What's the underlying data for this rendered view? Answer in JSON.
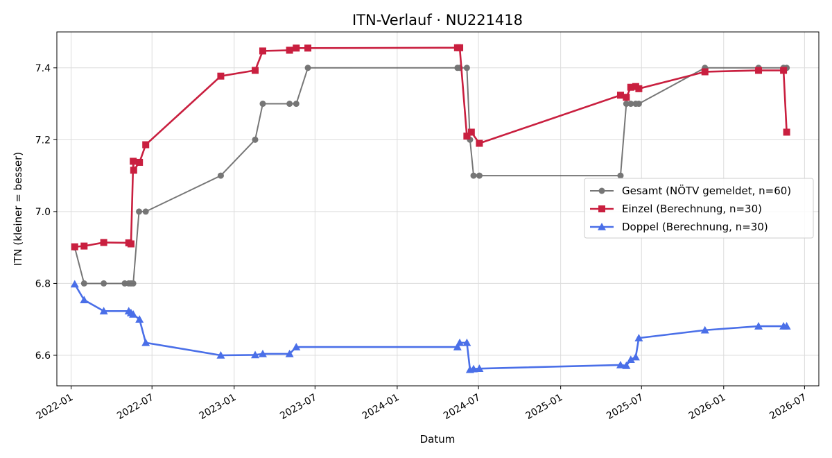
{
  "chart_data": {
    "type": "line",
    "title": "ITN-Verlauf · NU221418",
    "xlabel": "Datum",
    "ylabel": "ITN  (kleiner = besser)",
    "x_type": "date",
    "xlim": [
      "2021-11-30",
      "2026-08-02"
    ],
    "ylim": [
      6.515,
      7.5
    ],
    "x_ticks": [
      "2022-01-01",
      "2022-07-01",
      "2023-01-01",
      "2023-07-01",
      "2024-01-01",
      "2024-07-01",
      "2025-01-01",
      "2025-07-01",
      "2026-01-01",
      "2026-07-01"
    ],
    "x_tick_labels": [
      "2022-01",
      "2022-07",
      "2023-01",
      "2023-07",
      "2024-01",
      "2024-07",
      "2025-01",
      "2025-07",
      "2026-01",
      "2026-07"
    ],
    "y_ticks": [
      6.6,
      6.8,
      7.0,
      7.2,
      7.4
    ],
    "y_tick_labels": [
      "6.6",
      "6.8",
      "7.0",
      "7.2",
      "7.4"
    ],
    "grid": true,
    "legend_position": "center-right",
    "series": [
      {
        "name": "Gesamt (NÖTV gemeldet, n=60)",
        "color": "#555555",
        "marker": "circle",
        "points": [
          [
            "2022-01-09",
            6.9
          ],
          [
            "2022-01-30",
            6.8
          ],
          [
            "2022-03-15",
            6.8
          ],
          [
            "2022-05-01",
            6.8
          ],
          [
            "2022-05-10",
            6.8
          ],
          [
            "2022-05-15",
            6.8
          ],
          [
            "2022-05-20",
            6.8
          ],
          [
            "2022-06-02",
            7.0
          ],
          [
            "2022-06-17",
            7.0
          ],
          [
            "2022-12-02",
            7.1
          ],
          [
            "2023-02-17",
            7.2
          ],
          [
            "2023-03-06",
            7.3
          ],
          [
            "2023-05-05",
            7.3
          ],
          [
            "2023-05-20",
            7.3
          ],
          [
            "2023-06-15",
            7.4
          ],
          [
            "2024-05-15",
            7.4
          ],
          [
            "2024-05-20",
            7.4
          ],
          [
            "2024-06-05",
            7.4
          ],
          [
            "2024-06-12",
            7.2
          ],
          [
            "2024-06-20",
            7.1
          ],
          [
            "2024-07-03",
            7.1
          ],
          [
            "2025-05-15",
            7.1
          ],
          [
            "2025-05-28",
            7.3
          ],
          [
            "2025-06-07",
            7.3
          ],
          [
            "2025-06-18",
            7.3
          ],
          [
            "2025-06-25",
            7.3
          ],
          [
            "2025-11-20",
            7.4
          ],
          [
            "2026-03-20",
            7.4
          ],
          [
            "2026-05-15",
            7.4
          ],
          [
            "2026-05-22",
            7.4
          ]
        ]
      },
      {
        "name": "Einzel (Berechnung, n=30)",
        "color": "#c91f3f",
        "marker": "square",
        "points": [
          [
            "2022-01-09",
            6.902
          ],
          [
            "2022-01-30",
            6.904
          ],
          [
            "2022-03-15",
            6.914
          ],
          [
            "2022-05-10",
            6.913
          ],
          [
            "2022-05-15",
            6.91
          ],
          [
            "2022-05-20",
            7.14
          ],
          [
            "2022-05-21",
            7.115
          ],
          [
            "2022-06-03",
            7.137
          ],
          [
            "2022-06-17",
            7.186
          ],
          [
            "2022-12-02",
            7.377
          ],
          [
            "2023-02-17",
            7.393
          ],
          [
            "2023-03-06",
            7.447
          ],
          [
            "2023-05-05",
            7.449
          ],
          [
            "2023-05-20",
            7.455
          ],
          [
            "2023-06-15",
            7.455
          ],
          [
            "2024-05-15",
            7.456
          ],
          [
            "2024-05-20",
            7.456
          ],
          [
            "2024-06-05",
            7.21
          ],
          [
            "2024-06-15",
            7.221
          ],
          [
            "2024-07-03",
            7.19
          ],
          [
            "2025-05-15",
            7.324
          ],
          [
            "2025-05-28",
            7.318
          ],
          [
            "2025-06-07",
            7.346
          ],
          [
            "2025-06-18",
            7.348
          ],
          [
            "2025-06-25",
            7.342
          ],
          [
            "2025-11-20",
            7.389
          ],
          [
            "2026-03-20",
            7.393
          ],
          [
            "2026-05-15",
            7.393
          ],
          [
            "2026-05-22",
            7.221
          ]
        ]
      },
      {
        "name": "Doppel (Berechnung, n=30)",
        "color": "#4a6fe8",
        "marker": "triangle",
        "points": [
          [
            "2022-01-09",
            6.798
          ],
          [
            "2022-01-30",
            6.754
          ],
          [
            "2022-03-15",
            6.723
          ],
          [
            "2022-05-10",
            6.723
          ],
          [
            "2022-05-15",
            6.718
          ],
          [
            "2022-05-20",
            6.714
          ],
          [
            "2022-06-03",
            6.7
          ],
          [
            "2022-06-17",
            6.635
          ],
          [
            "2022-12-02",
            6.6
          ],
          [
            "2023-02-17",
            6.601
          ],
          [
            "2023-03-06",
            6.604
          ],
          [
            "2023-05-05",
            6.604
          ],
          [
            "2023-05-20",
            6.623
          ],
          [
            "2024-05-15",
            6.623
          ],
          [
            "2024-05-20",
            6.635
          ],
          [
            "2024-06-05",
            6.635
          ],
          [
            "2024-06-12",
            6.56
          ],
          [
            "2024-06-20",
            6.562
          ],
          [
            "2024-07-03",
            6.563
          ],
          [
            "2025-05-15",
            6.573
          ],
          [
            "2025-05-28",
            6.571
          ],
          [
            "2025-06-07",
            6.588
          ],
          [
            "2025-06-18",
            6.595
          ],
          [
            "2025-06-25",
            6.648
          ],
          [
            "2025-11-20",
            6.67
          ],
          [
            "2026-03-20",
            6.681
          ],
          [
            "2026-05-15",
            6.681
          ],
          [
            "2026-05-22",
            6.681
          ]
        ]
      }
    ]
  }
}
